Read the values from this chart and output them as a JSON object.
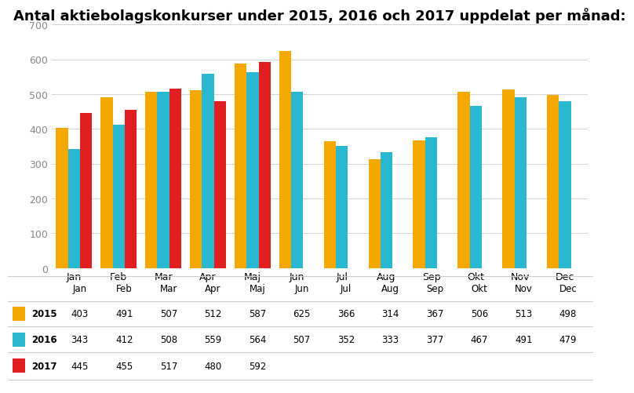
{
  "title": "Antal aktiebolagskonkurser under 2015, 2016 och 2017 uppdelat per månad:",
  "months": [
    "Jan",
    "Feb",
    "Mar",
    "Apr",
    "Maj",
    "Jun",
    "Jul",
    "Aug",
    "Sep",
    "Okt",
    "Nov",
    "Dec"
  ],
  "series": {
    "2015": [
      403,
      491,
      507,
      512,
      587,
      625,
      366,
      314,
      367,
      506,
      513,
      498
    ],
    "2016": [
      343,
      412,
      508,
      559,
      564,
      507,
      352,
      333,
      377,
      467,
      491,
      479
    ],
    "2017": [
      445,
      455,
      517,
      480,
      592,
      null,
      null,
      null,
      null,
      null,
      null,
      null
    ]
  },
  "colors": {
    "2015": "#F5A800",
    "2016": "#29B8D0",
    "2017": "#E02020"
  },
  "ylim": [
    0,
    700
  ],
  "yticks": [
    0,
    100,
    200,
    300,
    400,
    500,
    600,
    700
  ],
  "background_color": "#ffffff",
  "title_fontsize": 13,
  "tick_fontsize": 9,
  "table_data": {
    "2015": [
      "403",
      "491",
      "507",
      "512",
      "587",
      "625",
      "366",
      "314",
      "367",
      "506",
      "513",
      "498"
    ],
    "2016": [
      "343",
      "412",
      "508",
      "559",
      "564",
      "507",
      "352",
      "333",
      "377",
      "467",
      "491",
      "479"
    ],
    "2017": [
      "445",
      "455",
      "517",
      "480",
      "592",
      "",
      "",
      "",
      "",
      "",
      "",
      ""
    ]
  },
  "bar_order": [
    "2015",
    "2016",
    "2017"
  ],
  "bar_offsets": [
    -0.27,
    0,
    0.27
  ],
  "bar_width": 0.27
}
